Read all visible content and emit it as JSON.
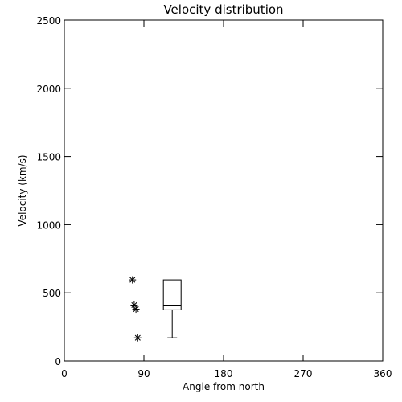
{
  "chart_data": {
    "type": "box",
    "title": "Velocity distribution",
    "xlabel": "Angle from north",
    "ylabel": "Velocity (km/s)",
    "xlim": [
      0,
      360
    ],
    "ylim": [
      0,
      2500
    ],
    "x_ticks": [
      0,
      90,
      180,
      270,
      360
    ],
    "y_ticks": [
      0,
      500,
      1000,
      1500,
      2000,
      2500
    ],
    "grid": false,
    "points": [
      {
        "x": 77,
        "y": 595
      },
      {
        "x": 79,
        "y": 410
      },
      {
        "x": 81,
        "y": 380
      },
      {
        "x": 83,
        "y": 170
      }
    ],
    "box": {
      "x_left": 112,
      "x_right": 132,
      "min": 170,
      "q1": 375,
      "median": 410,
      "q3": 595,
      "max": 595
    },
    "marker": "asterisk",
    "color": "#000000"
  }
}
